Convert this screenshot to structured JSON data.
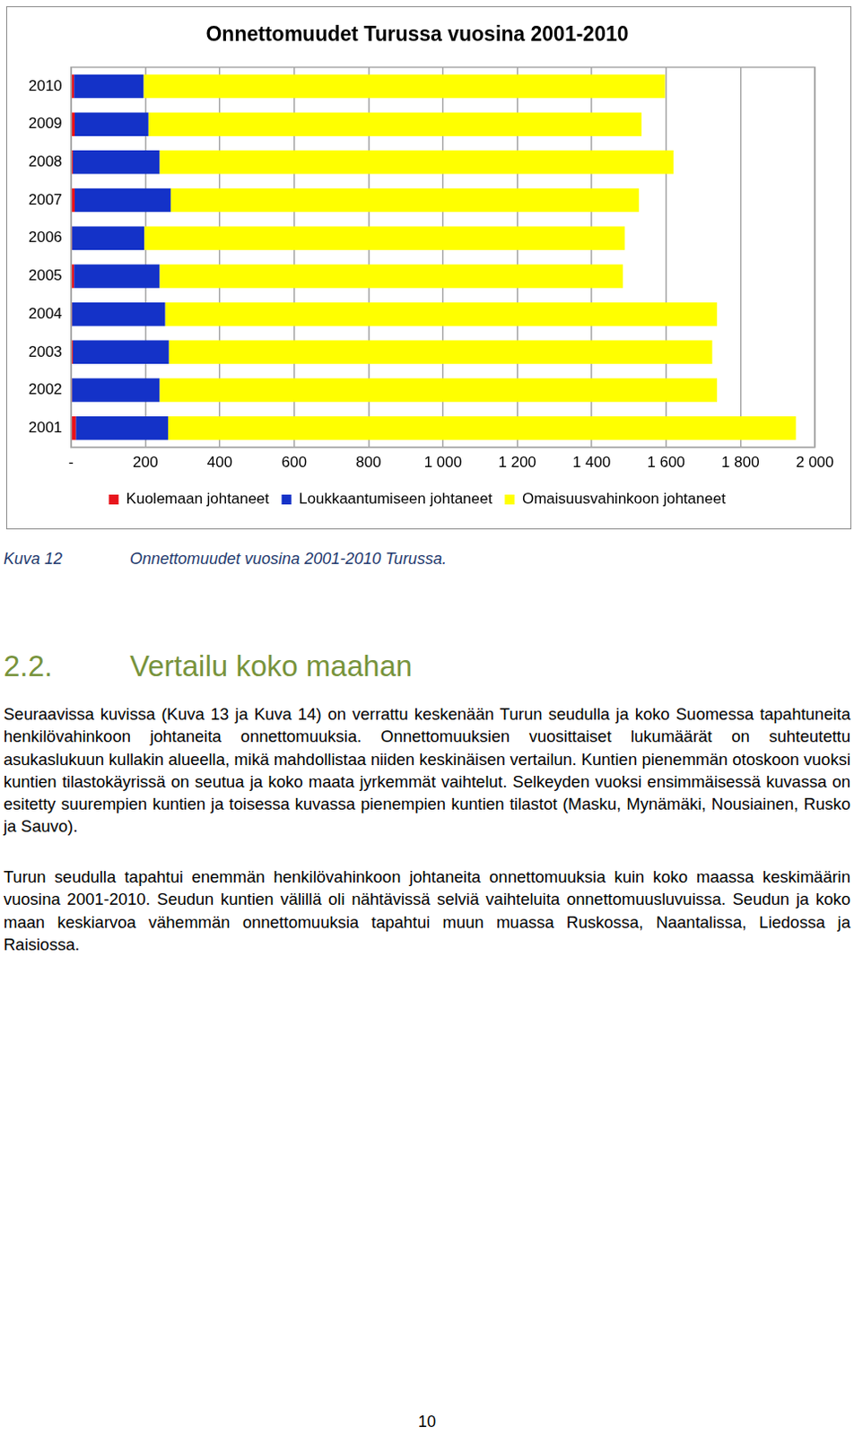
{
  "chart_data": {
    "type": "bar",
    "title": "Onnettomuudet Turussa vuosina 2001-2010",
    "orientation": "horizontal",
    "stacked": true,
    "grid": true,
    "legend": "bottom",
    "data_labels": false,
    "categories": [
      "2010",
      "2009",
      "2008",
      "2007",
      "2006",
      "2005",
      "2004",
      "2003",
      "2002",
      "2001"
    ],
    "series": [
      {
        "name": "Kuolemaan johtaneet",
        "color": "#e8141c",
        "values": [
          8,
          10,
          5,
          10,
          3,
          8,
          3,
          5,
          3,
          13
        ]
      },
      {
        "name": "Loukkaantumiseen johtaneet",
        "color": "#1432c8",
        "values": [
          187,
          198,
          233,
          258,
          194,
          230,
          250,
          258,
          235,
          248
        ]
      },
      {
        "name": "Omaisuusvahinkoon johtaneet",
        "color": "#ffff00",
        "values": [
          1402,
          1326,
          1382,
          1259,
          1292,
          1246,
          1484,
          1461,
          1499,
          1688
        ]
      }
    ],
    "xlim": [
      0,
      2000
    ],
    "xticks": [
      {
        "value": 0,
        "label": "-"
      },
      200,
      400,
      600,
      800,
      {
        "value": 1000,
        "label": "1 000"
      },
      {
        "value": 1200,
        "label": "1 200"
      },
      {
        "value": 1400,
        "label": "1 400"
      },
      {
        "value": 1600,
        "label": "1 600"
      },
      {
        "value": 1800,
        "label": "1 800"
      },
      {
        "value": 2000,
        "label": "2 000"
      }
    ]
  },
  "document": {
    "caption": {
      "number": "Kuva 12",
      "text": "Onnettomuudet vuosina 2001-2010 Turussa."
    },
    "heading": {
      "number": "2.2.",
      "text": "Vertailu koko maahan"
    },
    "paragraphs": [
      "Seuraavissa kuvissa (Kuva 13 ja Kuva 14) on verrattu keskenään Turun seudulla ja koko Suomessa tapahtuneita henkilövahinkoon johtaneita onnettomuuksia. Onnettomuuksien vuosittaiset lukumäärät on suhteutettu asukaslukuun kullakin alueella, mikä mahdollistaa niiden keskinäisen vertailun. Kuntien pienemmän otoskoon vuoksi kuntien tilastokäyrissä on seutua ja koko maata jyrkemmät vaihtelut. Selkeyden vuoksi ensimmäisessä kuvassa on esitetty suurempien kuntien ja toisessa kuvassa pienempien kuntien tilastot (Masku, Mynämäki, Nousiainen, Rusko ja Sauvo).",
      "Turun seudulla tapahtui enemmän henkilövahinkoon johtaneita onnettomuuksia kuin koko maassa keskimäärin vuosina 2001-2010. Seudun kuntien välillä oli nähtävissä selviä vaihteluita onnettomuusluvuissa. Seudun ja koko maan keskiarvoa vähemmän onnettomuuksia tapahtui muun muassa Ruskossa, Naantalissa, Liedossa ja Raisiossa."
    ],
    "page_number": "10"
  }
}
